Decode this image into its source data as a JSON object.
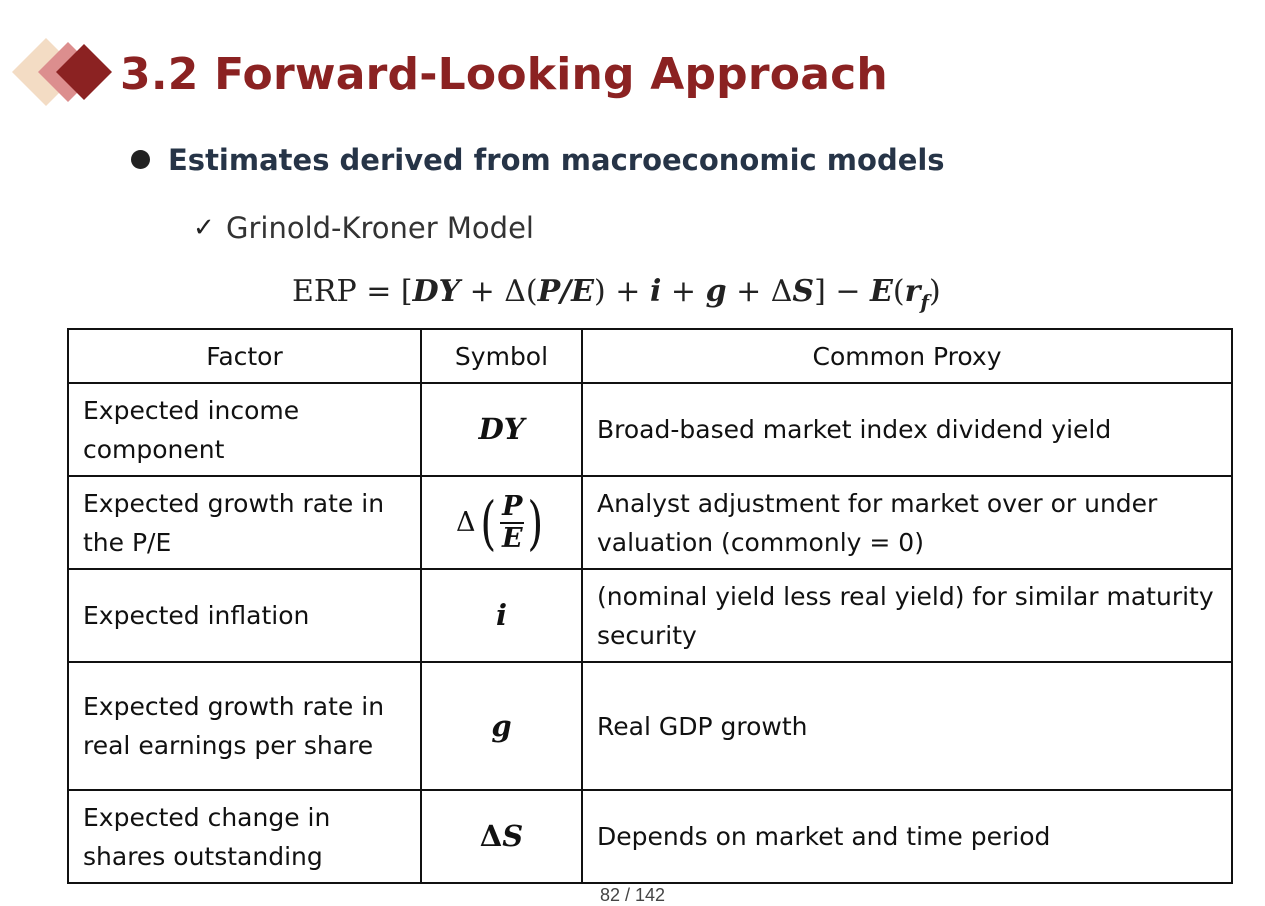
{
  "heading": {
    "title": "3.2 Forward-Looking Approach",
    "accent_color": "#8b2222",
    "icon": "diamond-cluster-icon"
  },
  "bullet": {
    "text": "Estimates derived from macroeconomic models"
  },
  "subbullet": {
    "check": "✓",
    "text": "Grinold-Kroner Model"
  },
  "formula": {
    "lhs": "ERP",
    "eq": " = [",
    "dy": "DY",
    "p1": " + Δ(",
    "pe": "P/E",
    "p2": ") + ",
    "i": "i",
    "p3": " + ",
    "g": "g",
    "p4": " + Δ",
    "s": "S",
    "p5": "] − ",
    "e": "E",
    "p6": "(",
    "r": "r",
    "f": "f",
    "p7": ")"
  },
  "table": {
    "headers": [
      "Factor",
      "Symbol",
      "Common Proxy"
    ],
    "rows": [
      {
        "factor": "Expected income component",
        "symbol": "DY",
        "proxy": "Broad-based market index dividend yield"
      },
      {
        "factor": "Expected growth rate in the P/E",
        "symbol_delta": "Δ",
        "symbol_num": "P",
        "symbol_den": "E",
        "proxy": "Analyst adjustment for market over or under valuation (commonly = 0)"
      },
      {
        "factor": "Expected inflation",
        "symbol": "i",
        "proxy": "(nominal yield less real yield) for similar maturity security"
      },
      {
        "factor": "Expected growth rate in real earnings per share",
        "symbol": "g",
        "proxy": "Real GDP growth"
      },
      {
        "factor": "Expected change in shares outstanding",
        "symbol_delta": "Δ",
        "symbol": "S",
        "proxy": "Depends on market and time period"
      }
    ]
  },
  "footer": {
    "page": "82 / 142"
  }
}
